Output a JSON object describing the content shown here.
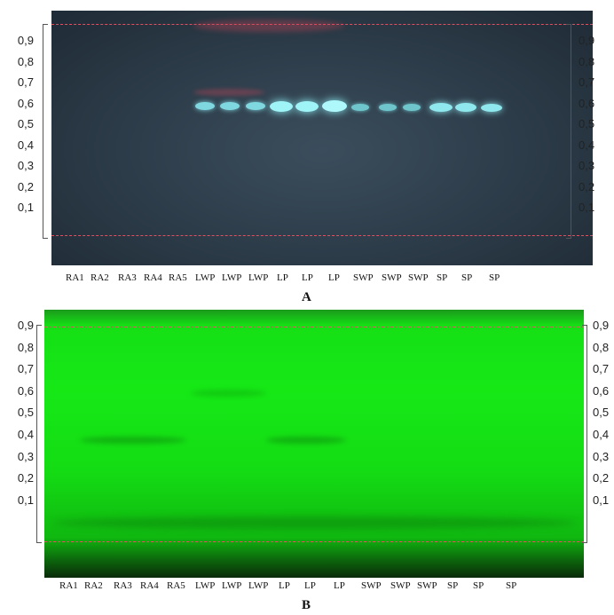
{
  "figure": {
    "panels": [
      {
        "id": "A",
        "caption": "A",
        "ticks": [
          "0,9",
          "0,8",
          "0,7",
          "0,6",
          "0,5",
          "0,4",
          "0,3",
          "0,2",
          "0,1"
        ],
        "lanes": [
          "RA1",
          "RA2",
          "RA3",
          "RA4",
          "RA5",
          "LWP",
          "LWP",
          "LWP",
          "LP",
          "LP",
          "LP",
          "SWP",
          "SWP",
          "SWP",
          "SP",
          "SP",
          "SP"
        ],
        "background_color": "#2c3b48",
        "band_color": "#7fe8ee",
        "solvent_front_color": "#e05060"
      },
      {
        "id": "B",
        "caption": "B",
        "ticks": [
          "0,9",
          "0,8",
          "0,7",
          "0,6",
          "0,5",
          "0,4",
          "0,3",
          "0,2",
          "0,1"
        ],
        "lanes": [
          "RA1",
          "RA2",
          "RA3",
          "RA4",
          "RA5",
          "LWP",
          "LWP",
          "LWP",
          "LP",
          "LP",
          "LP",
          "SWP",
          "SWP",
          "SWP",
          "SP",
          "SP",
          "SP"
        ],
        "background_color": "#16e816",
        "solvent_front_color": "#e05060"
      }
    ]
  }
}
